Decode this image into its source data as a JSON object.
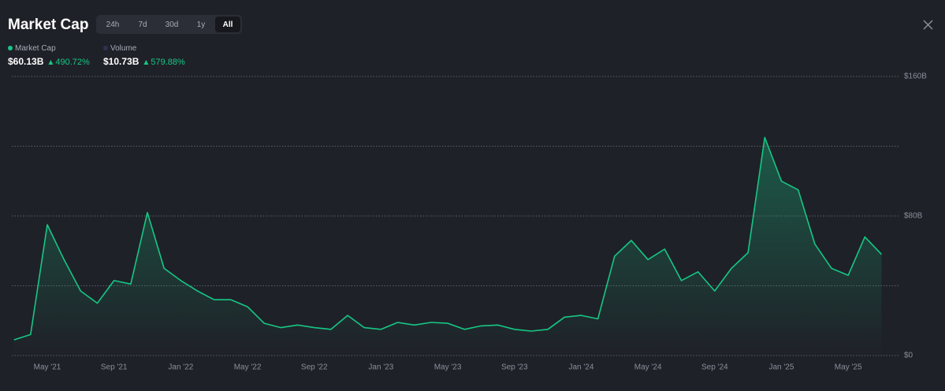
{
  "header": {
    "title": "Market Cap",
    "ranges": [
      "24h",
      "7d",
      "30d",
      "1y",
      "All"
    ],
    "selected_range": 4
  },
  "legend": [
    {
      "name": "Market Cap",
      "color": "#16c784",
      "value": "$60.13B",
      "change": "490.72%"
    },
    {
      "name": "Volume",
      "color": "#2b3350",
      "value": "$10.73B",
      "change": "579.88%"
    }
  ],
  "chart_data": {
    "type": "line",
    "x": [
      "2021-03",
      "2021-04",
      "2021-05",
      "2021-06",
      "2021-07",
      "2021-08",
      "2021-09",
      "2021-10",
      "2021-11",
      "2021-12",
      "2022-01",
      "2022-02",
      "2022-03",
      "2022-04",
      "2022-05",
      "2022-06",
      "2022-07",
      "2022-08",
      "2022-09",
      "2022-10",
      "2022-11",
      "2022-12",
      "2023-01",
      "2023-02",
      "2023-03",
      "2023-04",
      "2023-05",
      "2023-06",
      "2023-07",
      "2023-08",
      "2023-09",
      "2023-10",
      "2023-11",
      "2023-12",
      "2024-01",
      "2024-02",
      "2024-03",
      "2024-04",
      "2024-05",
      "2024-06",
      "2024-07",
      "2024-08",
      "2024-09",
      "2024-10",
      "2024-11",
      "2024-12",
      "2025-01",
      "2025-02",
      "2025-03",
      "2025-04",
      "2025-05",
      "2025-06",
      "2025-07"
    ],
    "series": [
      {
        "name": "Market Cap",
        "color": "#16c784",
        "values": [
          9,
          12,
          75,
          55,
          37,
          30,
          43,
          41,
          82,
          50,
          43,
          37,
          32,
          32,
          28,
          18.5,
          16,
          17.5,
          16,
          15,
          23,
          16,
          15,
          19,
          17.5,
          19,
          18.5,
          15,
          17,
          17.5,
          15,
          14,
          15,
          22,
          23,
          21,
          57,
          66,
          55,
          61,
          43,
          48,
          37,
          50,
          59,
          125,
          100,
          95,
          64,
          50,
          46,
          68,
          58
        ]
      }
    ],
    "ylim": [
      0,
      160
    ],
    "yticks": [
      {
        "value": 0,
        "label": "$0"
      },
      {
        "value": 40,
        "label": null
      },
      {
        "value": 80,
        "label": "$80B"
      },
      {
        "value": 120,
        "label": null
      },
      {
        "value": 160,
        "label": "$160B"
      }
    ],
    "xticks": [
      {
        "value": "2021-05",
        "label": "May '21"
      },
      {
        "value": "2021-09",
        "label": "Sep '21"
      },
      {
        "value": "2022-01",
        "label": "Jan '22"
      },
      {
        "value": "2022-05",
        "label": "May '22"
      },
      {
        "value": "2022-09",
        "label": "Sep '22"
      },
      {
        "value": "2023-01",
        "label": "Jan '23"
      },
      {
        "value": "2023-05",
        "label": "May '23"
      },
      {
        "value": "2023-09",
        "label": "Sep '23"
      },
      {
        "value": "2024-01",
        "label": "Jan '24"
      },
      {
        "value": "2024-05",
        "label": "May '24"
      },
      {
        "value": "2024-09",
        "label": "Sep '24"
      },
      {
        "value": "2025-01",
        "label": "Jan '25"
      },
      {
        "value": "2025-05",
        "label": "May '25"
      }
    ],
    "grid": true
  }
}
